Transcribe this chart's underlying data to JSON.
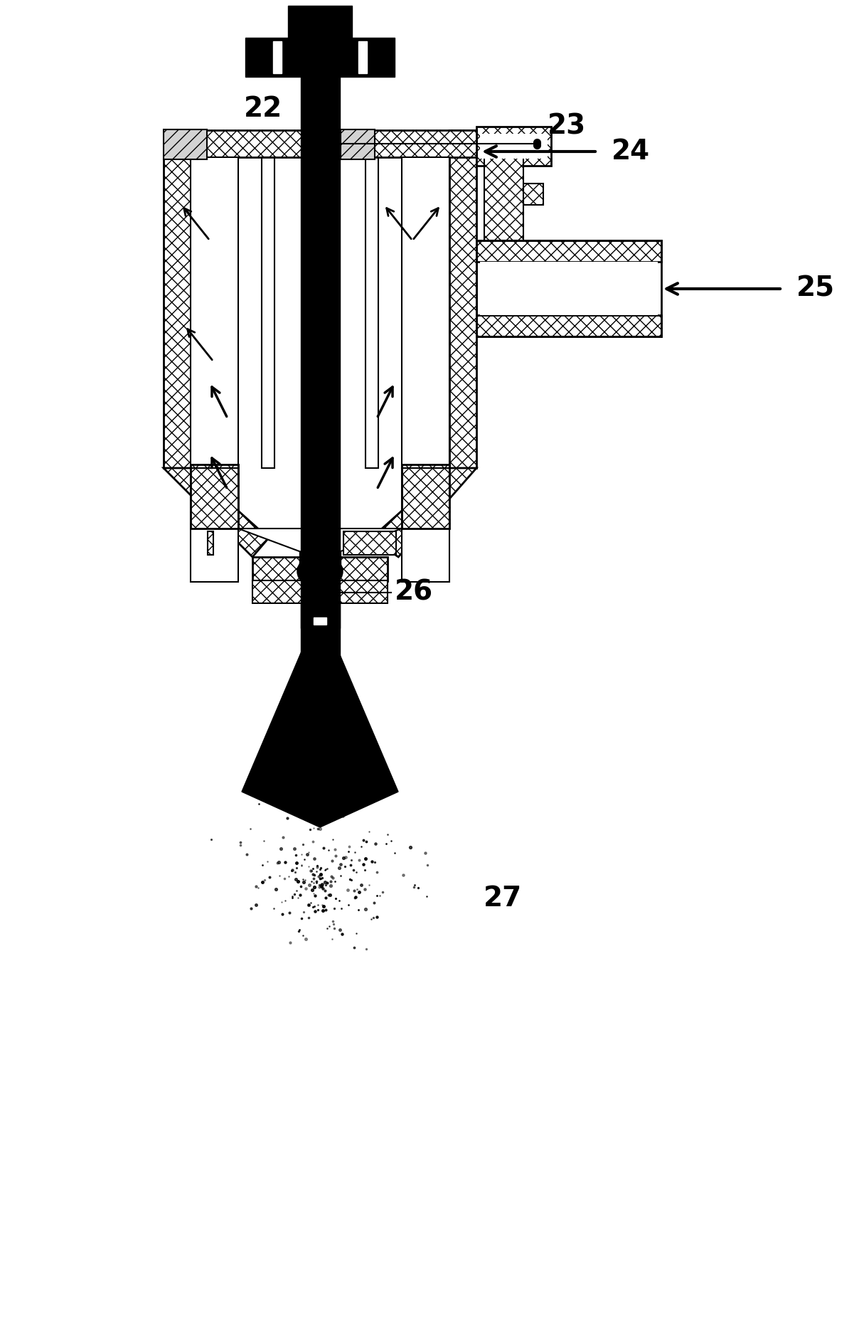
{
  "bg_color": "#ffffff",
  "line_color": "#000000",
  "hatch_color": "#000000",
  "label_22": "22",
  "label_23": "23",
  "label_24": "24",
  "label_25": "25",
  "label_26": "26",
  "label_27": "27",
  "figsize": [
    12.08,
    18.88
  ],
  "dpi": 100
}
